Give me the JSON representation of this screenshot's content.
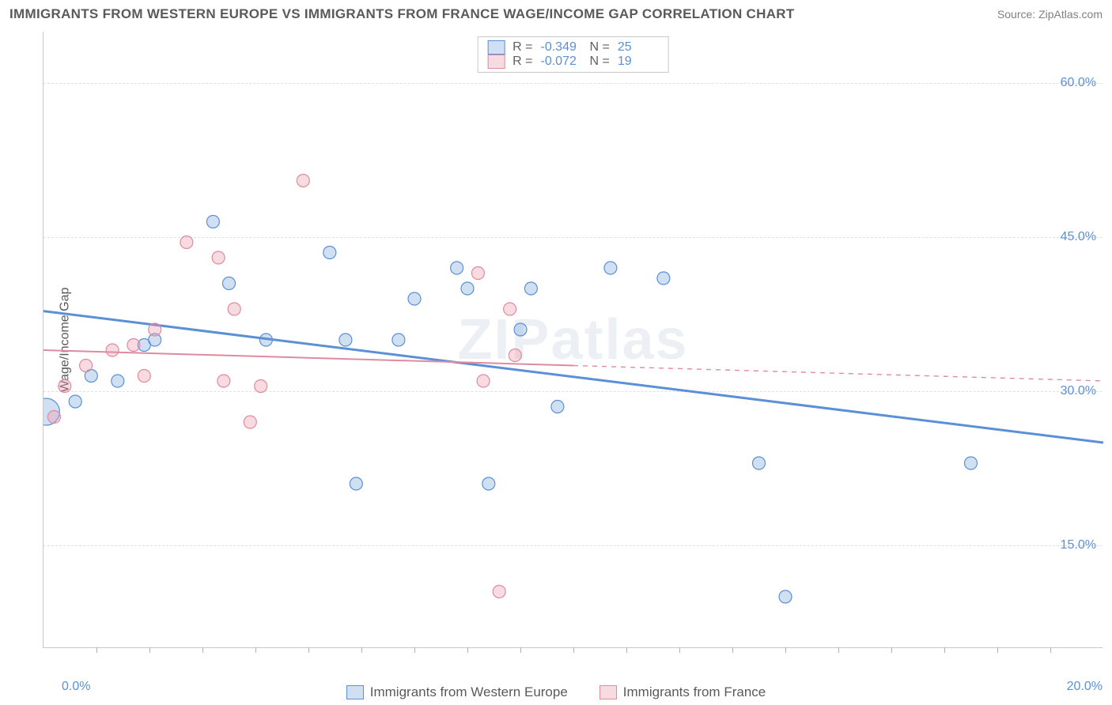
{
  "header": {
    "title": "IMMIGRANTS FROM WESTERN EUROPE VS IMMIGRANTS FROM FRANCE WAGE/INCOME GAP CORRELATION CHART",
    "source": "Source: ZipAtlas.com"
  },
  "chart": {
    "type": "scatter",
    "y_label": "Wage/Income Gap",
    "watermark": "ZIPatlas",
    "background_color": "#ffffff",
    "grid_color": "#e0e0e0",
    "axis_color": "#c8c8c8",
    "tick_label_color": "#5b8fd6",
    "xlim": [
      0.0,
      20.0
    ],
    "ylim": [
      5.0,
      65.0
    ],
    "y_ticks": [
      15.0,
      30.0,
      45.0,
      60.0
    ],
    "y_tick_labels": [
      "15.0%",
      "30.0%",
      "45.0%",
      "60.0%"
    ],
    "x_minor_ticks": [
      1,
      2,
      3,
      4,
      5,
      6,
      7,
      8,
      9,
      10,
      11,
      12,
      13,
      14,
      15,
      16,
      17,
      18,
      19
    ],
    "x_left_label": "0.0%",
    "x_right_label": "20.0%",
    "series": [
      {
        "name": "Immigrants from Western Europe",
        "color_fill": "rgba(120,165,220,0.35)",
        "color_stroke": "#5b8fd6",
        "r_value": "-0.349",
        "n_value": "25",
        "trend": {
          "x1": 0.0,
          "y1": 37.8,
          "x2": 20.0,
          "y2": 25.0,
          "solid_until_x": 20.0,
          "stroke_width": 3
        },
        "points": [
          {
            "x": 0.05,
            "y": 28.0,
            "r": 17
          },
          {
            "x": 0.6,
            "y": 29.0,
            "r": 8
          },
          {
            "x": 0.9,
            "y": 31.5,
            "r": 8
          },
          {
            "x": 1.4,
            "y": 31.0,
            "r": 8
          },
          {
            "x": 1.9,
            "y": 34.5,
            "r": 8
          },
          {
            "x": 2.1,
            "y": 35.0,
            "r": 8
          },
          {
            "x": 3.2,
            "y": 46.5,
            "r": 8
          },
          {
            "x": 3.5,
            "y": 40.5,
            "r": 8
          },
          {
            "x": 4.2,
            "y": 35.0,
            "r": 8
          },
          {
            "x": 5.4,
            "y": 43.5,
            "r": 8
          },
          {
            "x": 5.7,
            "y": 35.0,
            "r": 8
          },
          {
            "x": 5.9,
            "y": 21.0,
            "r": 8
          },
          {
            "x": 6.7,
            "y": 35.0,
            "r": 8
          },
          {
            "x": 7.0,
            "y": 39.0,
            "r": 8
          },
          {
            "x": 7.8,
            "y": 42.0,
            "r": 8
          },
          {
            "x": 8.0,
            "y": 40.0,
            "r": 8
          },
          {
            "x": 8.4,
            "y": 21.0,
            "r": 8
          },
          {
            "x": 9.0,
            "y": 36.0,
            "r": 8
          },
          {
            "x": 9.2,
            "y": 40.0,
            "r": 8
          },
          {
            "x": 9.7,
            "y": 28.5,
            "r": 8
          },
          {
            "x": 10.7,
            "y": 42.0,
            "r": 8
          },
          {
            "x": 11.7,
            "y": 41.0,
            "r": 8
          },
          {
            "x": 13.5,
            "y": 23.0,
            "r": 8
          },
          {
            "x": 14.0,
            "y": 10.0,
            "r": 8
          },
          {
            "x": 17.5,
            "y": 23.0,
            "r": 8
          }
        ]
      },
      {
        "name": "Immigrants from France",
        "color_fill": "rgba(235,150,170,0.35)",
        "color_stroke": "#e08aa0",
        "r_value": "-0.072",
        "n_value": "19",
        "trend": {
          "x1": 0.0,
          "y1": 34.0,
          "x2": 20.0,
          "y2": 31.0,
          "solid_until_x": 10.0,
          "stroke_width": 2
        },
        "points": [
          {
            "x": 0.2,
            "y": 27.5,
            "r": 8
          },
          {
            "x": 0.4,
            "y": 30.5,
            "r": 8
          },
          {
            "x": 0.8,
            "y": 32.5,
            "r": 8
          },
          {
            "x": 1.3,
            "y": 34.0,
            "r": 8
          },
          {
            "x": 1.7,
            "y": 34.5,
            "r": 8
          },
          {
            "x": 1.9,
            "y": 31.5,
            "r": 8
          },
          {
            "x": 2.1,
            "y": 36.0,
            "r": 8
          },
          {
            "x": 2.7,
            "y": 44.5,
            "r": 8
          },
          {
            "x": 3.3,
            "y": 43.0,
            "r": 8
          },
          {
            "x": 3.4,
            "y": 31.0,
            "r": 8
          },
          {
            "x": 3.6,
            "y": 38.0,
            "r": 8
          },
          {
            "x": 3.9,
            "y": 27.0,
            "r": 8
          },
          {
            "x": 4.1,
            "y": 30.5,
            "r": 8
          },
          {
            "x": 4.9,
            "y": 50.5,
            "r": 8
          },
          {
            "x": 8.2,
            "y": 41.5,
            "r": 8
          },
          {
            "x": 8.3,
            "y": 31.0,
            "r": 8
          },
          {
            "x": 8.6,
            "y": 10.5,
            "r": 8
          },
          {
            "x": 8.8,
            "y": 38.0,
            "r": 8
          },
          {
            "x": 8.9,
            "y": 33.5,
            "r": 8
          }
        ]
      }
    ]
  },
  "top_legend": {
    "r_label": "R =",
    "n_label": "N ="
  }
}
